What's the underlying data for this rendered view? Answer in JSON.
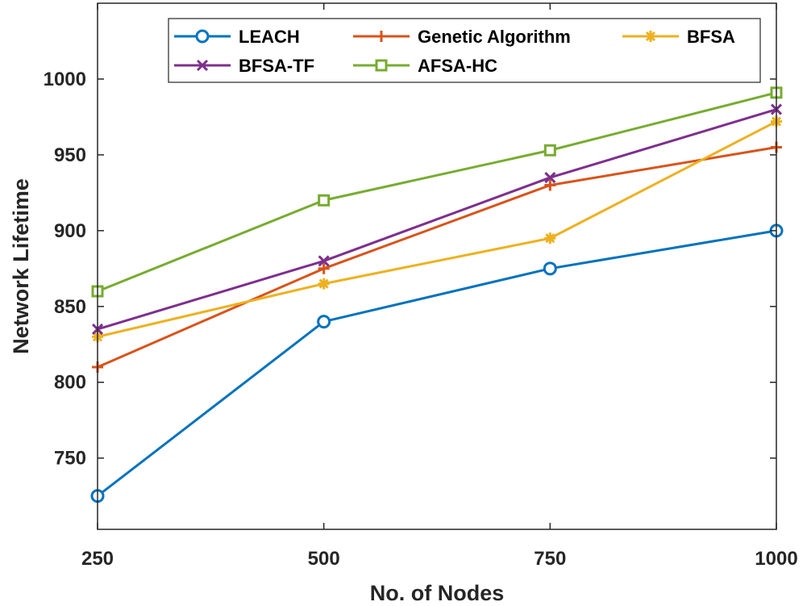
{
  "chart_data": {
    "type": "line",
    "title": "",
    "xlabel": "No. of Nodes",
    "ylabel": "Network Lifetime",
    "x": [
      250,
      500,
      750,
      1000
    ],
    "xticks": [
      "250",
      "500",
      "750",
      "1000"
    ],
    "xlim": [
      250,
      1000
    ],
    "yticks": [
      750,
      800,
      850,
      900,
      950,
      1000
    ],
    "ytick_labels": [
      "750",
      "800",
      "850",
      "900",
      "950",
      "1000"
    ],
    "ylim": [
      703,
      1050
    ],
    "grid": false,
    "legend_position": "top",
    "series": [
      {
        "name": "LEACH",
        "values": [
          725,
          840,
          875,
          900
        ],
        "color": "#0072BD",
        "marker": "circle"
      },
      {
        "name": "Genetic Algorithm",
        "values": [
          810,
          875,
          930,
          955
        ],
        "color": "#D95319",
        "marker": "plus"
      },
      {
        "name": "BFSA",
        "values": [
          830,
          865,
          895,
          972
        ],
        "color": "#EDB120",
        "marker": "asterisk"
      },
      {
        "name": "BFSA-TF",
        "values": [
          835,
          880,
          935,
          980
        ],
        "color": "#7E2F8E",
        "marker": "cross"
      },
      {
        "name": "AFSA-HC",
        "values": [
          860,
          920,
          953,
          991
        ],
        "color": "#77AC30",
        "marker": "square"
      }
    ]
  }
}
